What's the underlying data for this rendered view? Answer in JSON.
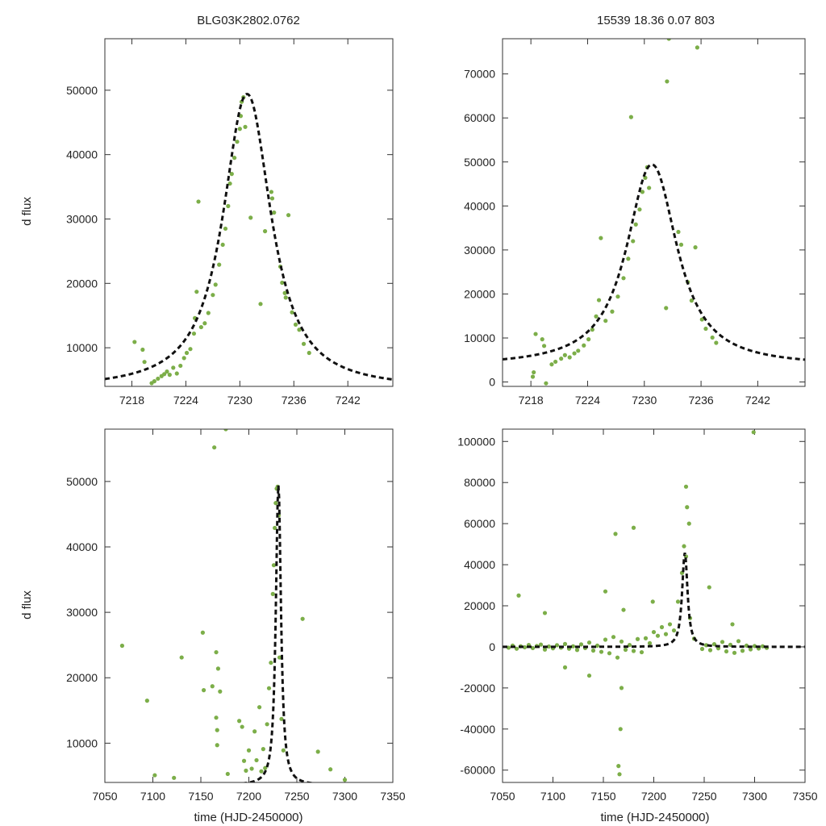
{
  "colors": {
    "data": "#7cae49",
    "model": "#111111",
    "frame": "#333333",
    "background": "#ffffff"
  },
  "figure": {
    "title_left": "BLG03K2802.0762",
    "title_right": "15539  18.36  0.07  803",
    "ylabel": "d flux",
    "xlabel": "time (HJD-2450000)"
  },
  "chart_data": [
    {
      "id": "top-left",
      "type": "scatter",
      "title": "BLG03K2802.0762",
      "xlabel": "",
      "ylabel": "d flux",
      "xlim": [
        7215,
        7247
      ],
      "ylim": [
        4000,
        58000
      ],
      "xticks": [
        7218,
        7224,
        7230,
        7236,
        7242
      ],
      "yticks": [
        10000,
        20000,
        30000,
        40000,
        50000
      ],
      "series": [
        {
          "name": "data",
          "style": "points",
          "x": [
            7218.3,
            7219.2,
            7219.4,
            7220.2,
            7220.5,
            7220.9,
            7221.3,
            7221.6,
            7221.9,
            7222.2,
            7222.6,
            7223.0,
            7223.4,
            7223.8,
            7224.1,
            7224.5,
            7224.9,
            7225.0,
            7225.2,
            7225.4,
            7225.7,
            7226.1,
            7226.5,
            7227.0,
            7227.3,
            7227.7,
            7228.1,
            7228.4,
            7228.7,
            7228.9,
            7229.1,
            7229.4,
            7229.7,
            7230.0,
            7230.1,
            7230.2,
            7230.4,
            7230.6,
            7231.2,
            7232.3,
            7232.8,
            7233.5,
            7233.6,
            7233.8,
            7234.5,
            7234.7,
            7235.0,
            7235.1,
            7235.4,
            7235.8,
            7236.2,
            7236.6,
            7237.1,
            7237.7
          ],
          "y": [
            10900,
            9700,
            7800,
            4500,
            4800,
            5200,
            5600,
            5900,
            6300,
            5800,
            6900,
            6000,
            7200,
            8400,
            9200,
            9800,
            12200,
            14600,
            18700,
            32700,
            13200,
            13800,
            15400,
            18200,
            19800,
            22900,
            26000,
            28500,
            32000,
            35500,
            37000,
            39500,
            42000,
            44000,
            46000,
            48200,
            48900,
            44300,
            30200,
            16800,
            28100,
            34200,
            33200,
            31000,
            22600,
            20100,
            18500,
            17800,
            30600,
            15500,
            13600,
            12800,
            10600,
            9200
          ]
        },
        {
          "name": "model",
          "style": "dashed",
          "params": {
            "t0": 7230.8,
            "amplitude": 45800,
            "tE": 3.2,
            "baseline": 3600,
            "sharpness": 2.1
          }
        }
      ]
    },
    {
      "id": "top-right",
      "type": "scatter",
      "title": "15539  18.36  0.07  803",
      "xlabel": "",
      "ylabel": "",
      "xlim": [
        7215,
        7247
      ],
      "ylim": [
        -1000,
        78000
      ],
      "xticks": [
        7218,
        7224,
        7230,
        7236,
        7242
      ],
      "yticks": [
        0,
        10000,
        20000,
        30000,
        40000,
        50000,
        60000,
        70000
      ],
      "series": [
        {
          "name": "data",
          "style": "points",
          "x": [
            7218.2,
            7218.3,
            7218.5,
            7219.2,
            7219.4,
            7219.6,
            7220.2,
            7220.6,
            7221.2,
            7221.6,
            7222.1,
            7222.6,
            7223.0,
            7223.6,
            7224.1,
            7224.5,
            7224.9,
            7225.2,
            7225.4,
            7225.9,
            7226.6,
            7227.2,
            7227.8,
            7228.3,
            7228.6,
            7228.8,
            7229.1,
            7229.5,
            7229.8,
            7230.1,
            7230.3,
            7230.5,
            7232.3,
            7232.4,
            7232.6,
            7233.6,
            7233.9,
            7234.6,
            7235.0,
            7235.4,
            7235.6,
            7236.1,
            7236.5,
            7237.2,
            7237.6
          ],
          "y": [
            1200,
            2200,
            10900,
            9700,
            8200,
            -300,
            4000,
            4600,
            5300,
            6100,
            5600,
            6500,
            7100,
            8300,
            9700,
            11900,
            14900,
            18600,
            32700,
            13900,
            16000,
            19400,
            23600,
            28000,
            60200,
            32000,
            35800,
            39200,
            43200,
            46400,
            48800,
            44100,
            16800,
            68300,
            78000,
            34100,
            31200,
            22700,
            18500,
            30600,
            76000,
            14200,
            12100,
            10100,
            8900
          ]
        },
        {
          "name": "model",
          "style": "dashed",
          "params": {
            "t0": 7230.8,
            "amplitude": 45800,
            "tE": 3.2,
            "baseline": 3600,
            "sharpness": 2.1
          }
        }
      ]
    },
    {
      "id": "bottom-left",
      "type": "scatter",
      "title": "",
      "xlabel": "time (HJD-2450000)",
      "ylabel": "d flux",
      "xlim": [
        7050,
        7350
      ],
      "ylim": [
        4000,
        58000
      ],
      "xticks": [
        7050,
        7100,
        7150,
        7200,
        7250,
        7300,
        7350
      ],
      "yticks": [
        10000,
        20000,
        30000,
        40000,
        50000
      ],
      "series": [
        {
          "name": "data",
          "style": "points",
          "x": [
            7068,
            7094,
            7102,
            7122,
            7130,
            7152,
            7153,
            7162,
            7164,
            7166,
            7166,
            7167,
            7167,
            7168,
            7170,
            7176,
            7178,
            7190,
            7193,
            7195,
            7197,
            7200,
            7203,
            7206,
            7208,
            7211,
            7213,
            7215,
            7217,
            7219,
            7221,
            7223,
            7225,
            7226,
            7227,
            7228,
            7229,
            7230,
            7231,
            7232,
            7234,
            7236,
            7256,
            7272,
            7285,
            7300
          ],
          "y": [
            24900,
            16500,
            5100,
            4700,
            23100,
            26900,
            18100,
            18700,
            55200,
            23900,
            13900,
            9700,
            12000,
            21400,
            17900,
            58000,
            5300,
            13400,
            12500,
            7300,
            5800,
            8900,
            6100,
            11800,
            7400,
            15500,
            5700,
            9100,
            6200,
            12900,
            18400,
            22300,
            32800,
            37200,
            42900,
            46700,
            48900,
            49200,
            44800,
            23100,
            13700,
            8900,
            29000,
            8700,
            6000,
            4400
          ]
        },
        {
          "name": "model",
          "style": "dashed",
          "params": {
            "t0": 7230.8,
            "amplitude": 45800,
            "tE": 3.2,
            "baseline": 3600,
            "sharpness": 2.1
          }
        }
      ]
    },
    {
      "id": "bottom-right",
      "type": "scatter",
      "title": "",
      "xlabel": "time (HJD-2450000)",
      "ylabel": "",
      "xlim": [
        7050,
        7350
      ],
      "ylim": [
        -66000,
        106000
      ],
      "xticks": [
        7050,
        7100,
        7150,
        7200,
        7250,
        7300,
        7350
      ],
      "yticks": [
        -60000,
        -40000,
        -20000,
        0,
        20000,
        40000,
        60000,
        80000,
        100000
      ],
      "series": [
        {
          "name": "data",
          "style": "points",
          "x": [
            7056,
            7060,
            7064,
            7068,
            7072,
            7076,
            7080,
            7084,
            7088,
            7092,
            7096,
            7100,
            7104,
            7108,
            7112,
            7116,
            7120,
            7124,
            7128,
            7132,
            7136,
            7140,
            7144,
            7148,
            7152,
            7156,
            7160,
            7164,
            7168,
            7172,
            7176,
            7180,
            7184,
            7188,
            7192,
            7196,
            7200,
            7204,
            7208,
            7212,
            7216,
            7220,
            7224,
            7228,
            7230,
            7232,
            7236,
            7240,
            7248,
            7252,
            7256,
            7260,
            7264,
            7268,
            7272,
            7276,
            7280,
            7284,
            7288,
            7292,
            7296,
            7300,
            7304,
            7308,
            7312,
            7066,
            7092,
            7112,
            7136,
            7152,
            7162,
            7165,
            7166,
            7167,
            7168,
            7170,
            7180,
            7199,
            7232,
            7233,
            7235,
            7255,
            7278,
            7299
          ],
          "y": [
            -400,
            600,
            -900,
            300,
            -200,
            900,
            -600,
            400,
            1100,
            -1300,
            200,
            -700,
            800,
            -400,
            1400,
            -900,
            300,
            -1500,
            1200,
            -600,
            2100,
            -1800,
            600,
            -2400,
            3500,
            -3100,
            4800,
            -5200,
            2600,
            -1400,
            900,
            -2000,
            3800,
            -2600,
            4200,
            1800,
            7200,
            5400,
            9600,
            6200,
            11000,
            8000,
            22000,
            36000,
            49000,
            44000,
            14000,
            4000,
            -1000,
            800,
            -1600,
            1300,
            -700,
            2400,
            -2200,
            1000,
            -2900,
            2800,
            -1900,
            600,
            -1200,
            400,
            -800,
            300,
            -500,
            25000,
            16500,
            -10000,
            -14000,
            27000,
            55000,
            -58000,
            -62000,
            -40000,
            -20000,
            18000,
            58000,
            22000,
            78000,
            68000,
            60000,
            29000,
            11000,
            104500
          ]
        },
        {
          "name": "model",
          "style": "dashed",
          "params": {
            "t0": 7230.8,
            "amplitude": 45800,
            "tE": 3.2,
            "baseline": 0,
            "sharpness": 2.1
          }
        }
      ]
    }
  ]
}
